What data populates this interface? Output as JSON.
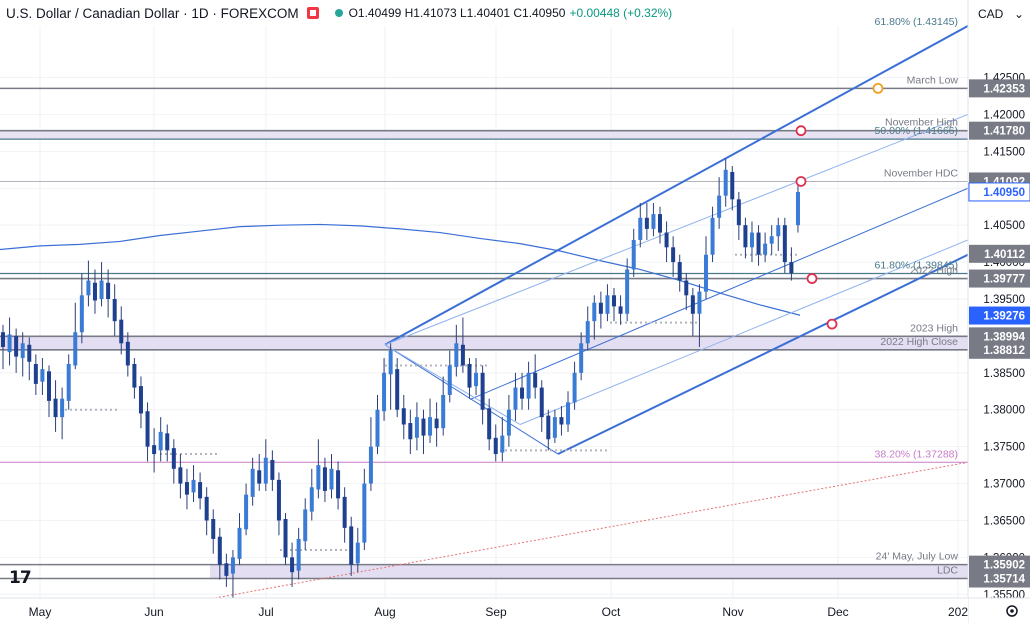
{
  "header": {
    "symbol": "U.S. Dollar / Canadian Dollar · 1D · FOREXCOM",
    "ohlc": "O1.40499  H1.41073  L1.40401  C1.40950",
    "change": "+0.00448 (+0.32%)"
  },
  "currency": "CAD",
  "logo_icon": "tradingview-logo-icon",
  "chart_data": {
    "type": "candlestick",
    "y_axis": {
      "ylim": [
        1.3545,
        1.4355
      ],
      "ticks": [
        "1.42500",
        "1.42000",
        "1.41500",
        "1.41000",
        "1.40500",
        "1.40000",
        "1.39500",
        "1.38500",
        "1.38000",
        "1.37500",
        "1.37000",
        "1.36500",
        "1.36000",
        "1.35500"
      ]
    },
    "x_axis": {
      "labels": [
        "May",
        "Jun",
        "Jul",
        "Aug",
        "Sep",
        "Oct",
        "Nov",
        "Dec",
        "202"
      ]
    },
    "price_tags": [
      {
        "label": "1.42353",
        "value": 1.42353,
        "style": "gray"
      },
      {
        "label": "1.41780",
        "value": 1.4178,
        "style": "gray"
      },
      {
        "label": "1.41092",
        "value": 1.41092,
        "style": "gray"
      },
      {
        "label": "1.40950",
        "value": 1.4095,
        "style": "light"
      },
      {
        "label": "1.40112",
        "value": 1.40112,
        "style": "gray"
      },
      {
        "label": "1.39777",
        "value": 1.39777,
        "style": "gray"
      },
      {
        "label": "1.39276",
        "value": 1.39276,
        "style": "blue"
      },
      {
        "label": "1.38994",
        "value": 1.38994,
        "style": "gray"
      },
      {
        "label": "1.38812",
        "value": 1.38812,
        "style": "gray"
      },
      {
        "label": "1.35902",
        "value": 1.35902,
        "style": "gray"
      },
      {
        "label": "1.35714",
        "value": 1.35714,
        "style": "gray"
      }
    ],
    "levels": [
      {
        "text": "61.80% (1.43145)",
        "value": 1.43145,
        "color": "#4a7a8c"
      },
      {
        "text": "March Low",
        "value": 1.42353,
        "color": "#787b86"
      },
      {
        "text": "November High",
        "value": 1.4178,
        "color": "#787b86"
      },
      {
        "text": "50.00% (1.41666)",
        "value": 1.41666,
        "color": "#4a7a8c"
      },
      {
        "text": "November HDC",
        "value": 1.41092,
        "color": "#787b86"
      },
      {
        "text": "61.80% (1.39845)",
        "value": 1.39845,
        "color": "#4a7a8c"
      },
      {
        "text": "2022 High",
        "value": 1.39777,
        "color": "#787b86"
      },
      {
        "text": "2023 High",
        "value": 1.38994,
        "color": "#787b86"
      },
      {
        "text": "2022 High Close",
        "value": 1.38812,
        "color": "#787b86"
      },
      {
        "text": "38.20% (1.37288)",
        "value": 1.37288,
        "color": "#c77dc7"
      },
      {
        "text": "24' May, July Low",
        "value": 1.35902,
        "color": "#787b86"
      },
      {
        "text": "LDC",
        "value": 1.35714,
        "color": "#787b86"
      }
    ],
    "candles": [
      [
        1.3905,
        1.3885,
        1.3915,
        1.3855
      ],
      [
        1.3878,
        1.3902,
        1.3925,
        1.386
      ],
      [
        1.39,
        1.3872,
        1.391,
        1.385
      ],
      [
        1.387,
        1.389,
        1.3905,
        1.3845
      ],
      [
        1.3888,
        1.3865,
        1.3898,
        1.384
      ],
      [
        1.3862,
        1.3835,
        1.3875,
        1.382
      ],
      [
        1.3838,
        1.3855,
        1.387,
        1.382
      ],
      [
        1.3852,
        1.3812,
        1.386,
        1.379
      ],
      [
        1.3815,
        1.379,
        1.384,
        1.377
      ],
      [
        1.379,
        1.3815,
        1.383,
        1.376
      ],
      [
        1.3812,
        1.3862,
        1.3875,
        1.38
      ],
      [
        1.386,
        1.3905,
        1.3945,
        1.3855
      ],
      [
        1.3905,
        1.3955,
        1.3985,
        1.389
      ],
      [
        1.3955,
        1.3975,
        1.4002,
        1.394
      ],
      [
        1.3972,
        1.3948,
        1.399,
        1.393
      ],
      [
        1.395,
        1.3975,
        1.4,
        1.394
      ],
      [
        1.3972,
        1.395,
        1.399,
        1.3925
      ],
      [
        1.395,
        1.392,
        1.397,
        1.39
      ],
      [
        1.3922,
        1.389,
        1.394,
        1.3875
      ],
      [
        1.3892,
        1.386,
        1.3905,
        1.3845
      ],
      [
        1.3862,
        1.383,
        1.387,
        1.3815
      ],
      [
        1.3832,
        1.3795,
        1.3845,
        1.3775
      ],
      [
        1.3798,
        1.375,
        1.381,
        1.373
      ],
      [
        1.3752,
        1.374,
        1.3775,
        1.3715
      ],
      [
        1.3745,
        1.377,
        1.379,
        1.373
      ],
      [
        1.3768,
        1.3745,
        1.378,
        1.373
      ],
      [
        1.3748,
        1.372,
        1.376,
        1.37
      ],
      [
        1.3722,
        1.37,
        1.374,
        1.368
      ],
      [
        1.3702,
        1.3685,
        1.372,
        1.3665
      ],
      [
        1.3688,
        1.3705,
        1.3725,
        1.3675
      ],
      [
        1.3702,
        1.368,
        1.3715,
        1.3665
      ],
      [
        1.3682,
        1.365,
        1.3695,
        1.363
      ],
      [
        1.3652,
        1.3625,
        1.3665,
        1.3605
      ],
      [
        1.3628,
        1.359,
        1.364,
        1.357
      ],
      [
        1.3592,
        1.3575,
        1.3605,
        1.356
      ],
      [
        1.3578,
        1.36,
        1.361,
        1.3545
      ],
      [
        1.3598,
        1.364,
        1.366,
        1.359
      ],
      [
        1.3638,
        1.3685,
        1.37,
        1.363
      ],
      [
        1.3682,
        1.372,
        1.3735,
        1.367
      ],
      [
        1.3718,
        1.37,
        1.374,
        1.369
      ],
      [
        1.37,
        1.3735,
        1.376,
        1.369
      ],
      [
        1.3732,
        1.3705,
        1.3745,
        1.369
      ],
      [
        1.3705,
        1.365,
        1.3715,
        1.363
      ],
      [
        1.3652,
        1.36,
        1.366,
        1.359
      ],
      [
        1.36,
        1.358,
        1.362,
        1.356
      ],
      [
        1.3582,
        1.3625,
        1.364,
        1.357
      ],
      [
        1.3622,
        1.3665,
        1.368,
        1.361
      ],
      [
        1.3662,
        1.3695,
        1.372,
        1.365
      ],
      [
        1.3692,
        1.3725,
        1.376,
        1.368
      ],
      [
        1.3722,
        1.369,
        1.3735,
        1.3675
      ],
      [
        1.3692,
        1.372,
        1.374,
        1.368
      ],
      [
        1.3718,
        1.368,
        1.373,
        1.3665
      ],
      [
        1.3682,
        1.364,
        1.3695,
        1.362
      ],
      [
        1.3642,
        1.359,
        1.3655,
        1.3575
      ],
      [
        1.3592,
        1.362,
        1.364,
        1.358
      ],
      [
        1.362,
        1.37,
        1.372,
        1.361
      ],
      [
        1.37,
        1.375,
        1.379,
        1.369
      ],
      [
        1.375,
        1.38,
        1.382,
        1.374
      ],
      [
        1.3798,
        1.385,
        1.387,
        1.3785
      ],
      [
        1.3848,
        1.388,
        1.389,
        1.38
      ],
      [
        1.3855,
        1.38,
        1.387,
        1.379
      ],
      [
        1.3802,
        1.378,
        1.382,
        1.376
      ],
      [
        1.3782,
        1.376,
        1.38,
        1.374
      ],
      [
        1.3762,
        1.379,
        1.381,
        1.3745
      ],
      [
        1.3788,
        1.3765,
        1.38,
        1.374
      ],
      [
        1.3765,
        1.379,
        1.3815,
        1.3755
      ],
      [
        1.3788,
        1.3775,
        1.381,
        1.375
      ],
      [
        1.3775,
        1.382,
        1.3845,
        1.3765
      ],
      [
        1.382,
        1.386,
        1.388,
        1.381
      ],
      [
        1.3858,
        1.389,
        1.3915,
        1.3845
      ],
      [
        1.3888,
        1.386,
        1.3925,
        1.385
      ],
      [
        1.3862,
        1.383,
        1.387,
        1.3815
      ],
      [
        1.3832,
        1.385,
        1.387,
        1.382
      ],
      [
        1.385,
        1.38,
        1.386,
        1.378
      ],
      [
        1.3802,
        1.376,
        1.3815,
        1.3745
      ],
      [
        1.3762,
        1.374,
        1.378,
        1.373
      ],
      [
        1.3742,
        1.3765,
        1.379,
        1.373
      ],
      [
        1.3765,
        1.38,
        1.382,
        1.375
      ],
      [
        1.38,
        1.383,
        1.385,
        1.3785
      ],
      [
        1.383,
        1.3815,
        1.385,
        1.38
      ],
      [
        1.3815,
        1.385,
        1.3865,
        1.38
      ],
      [
        1.385,
        1.383,
        1.3875,
        1.3815
      ],
      [
        1.383,
        1.379,
        1.384,
        1.377
      ],
      [
        1.3792,
        1.376,
        1.38,
        1.3745
      ],
      [
        1.3762,
        1.379,
        1.38,
        1.3755
      ],
      [
        1.379,
        1.378,
        1.3805,
        1.3765
      ],
      [
        1.378,
        1.381,
        1.3825,
        1.377
      ],
      [
        1.381,
        1.385,
        1.3865,
        1.38
      ],
      [
        1.385,
        1.389,
        1.3905,
        1.384
      ],
      [
        1.389,
        1.392,
        1.394,
        1.388
      ],
      [
        1.392,
        1.3945,
        1.3955,
        1.3895
      ],
      [
        1.3945,
        1.393,
        1.396,
        1.391
      ],
      [
        1.393,
        1.3955,
        1.397,
        1.392
      ],
      [
        1.3955,
        1.394,
        1.3965,
        1.392
      ],
      [
        1.394,
        1.393,
        1.3955,
        1.3915
      ],
      [
        1.393,
        1.399,
        1.4005,
        1.392
      ],
      [
        1.399,
        1.403,
        1.4045,
        1.398
      ],
      [
        1.403,
        1.406,
        1.408,
        1.402
      ],
      [
        1.406,
        1.4045,
        1.408,
        1.403
      ],
      [
        1.4045,
        1.4065,
        1.408,
        1.4035
      ],
      [
        1.4065,
        1.404,
        1.4075,
        1.4025
      ],
      [
        1.404,
        1.402,
        1.4055,
        1.4
      ],
      [
        1.402,
        1.4,
        1.4035,
        1.398
      ],
      [
        1.4,
        1.3975,
        1.401,
        1.396
      ],
      [
        1.3975,
        1.3955,
        1.3985,
        1.3935
      ],
      [
        1.3955,
        1.393,
        1.3965,
        1.39
      ],
      [
        1.393,
        1.396,
        1.397,
        1.3885
      ],
      [
        1.396,
        1.401,
        1.4035,
        1.395
      ],
      [
        1.401,
        1.406,
        1.4075,
        1.4
      ],
      [
        1.406,
        1.409,
        1.4115,
        1.4045
      ],
      [
        1.409,
        1.4125,
        1.414,
        1.4075
      ],
      [
        1.4122,
        1.4085,
        1.413,
        1.407
      ],
      [
        1.4085,
        1.405,
        1.4095,
        1.403
      ],
      [
        1.405,
        1.402,
        1.406,
        1.4005
      ],
      [
        1.402,
        1.404,
        1.4055,
        1.4
      ],
      [
        1.404,
        1.401,
        1.405,
        1.3995
      ],
      [
        1.401,
        1.4025,
        1.404,
        1.4
      ],
      [
        1.4025,
        1.4035,
        1.405,
        1.401
      ],
      [
        1.4035,
        1.405,
        1.406,
        1.4015
      ],
      [
        1.405,
        1.4,
        1.406,
        1.3985
      ],
      [
        1.4,
        1.3985,
        1.402,
        1.3975
      ],
      [
        1.405,
        1.4095,
        1.4107,
        1.404
      ]
    ]
  }
}
